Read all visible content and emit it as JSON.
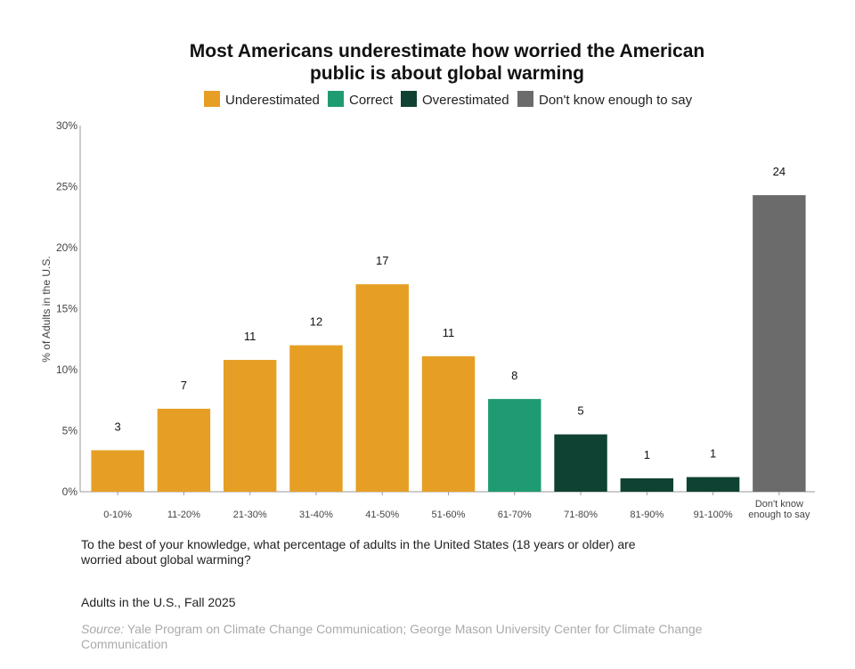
{
  "chart_data": {
    "type": "bar",
    "title": [
      "Most Americans underestimate how worried the American",
      "public is about global warming"
    ],
    "ylabel": "% of Adults in the U.S.",
    "xlabel": "",
    "ylim": [
      0,
      30
    ],
    "yticks": [
      "0%",
      "5%",
      "10%",
      "15%",
      "20%",
      "25%",
      "30%"
    ],
    "grid": false,
    "legend_position": "top",
    "legend": [
      {
        "name": "Underestimated",
        "color": "#E69F24"
      },
      {
        "name": "Correct",
        "color": "#1F9B73"
      },
      {
        "name": "Overestimated",
        "color": "#0F4233"
      },
      {
        "name": "Don't know enough to say",
        "color": "#6B6B6B"
      }
    ],
    "categories": [
      [
        "0-10%"
      ],
      [
        "11-20%"
      ],
      [
        "21-30%"
      ],
      [
        "31-40%"
      ],
      [
        "41-50%"
      ],
      [
        "51-60%"
      ],
      [
        "61-70%"
      ],
      [
        "71-80%"
      ],
      [
        "81-90%"
      ],
      [
        "91-100%"
      ],
      [
        "Don't know",
        "enough to say"
      ]
    ],
    "values": [
      3.4,
      6.8,
      10.8,
      12.0,
      17.0,
      11.1,
      7.6,
      4.7,
      1.1,
      1.2,
      24.3
    ],
    "data_labels": [
      "3",
      "7",
      "11",
      "12",
      "17",
      "11",
      "8",
      "5",
      "1",
      "1",
      "24"
    ],
    "groups": [
      0,
      0,
      0,
      0,
      0,
      0,
      1,
      2,
      2,
      2,
      3
    ]
  },
  "question": "To the best of your knowledge, what percentage of adults in the United States (18 years or older) are worried about global warming?",
  "population": "Adults in the U.S., Fall 2025",
  "source_label": "Source:",
  "source_text": " Yale Program on Climate Change Communication; George Mason University Center for Climate Change Communication"
}
